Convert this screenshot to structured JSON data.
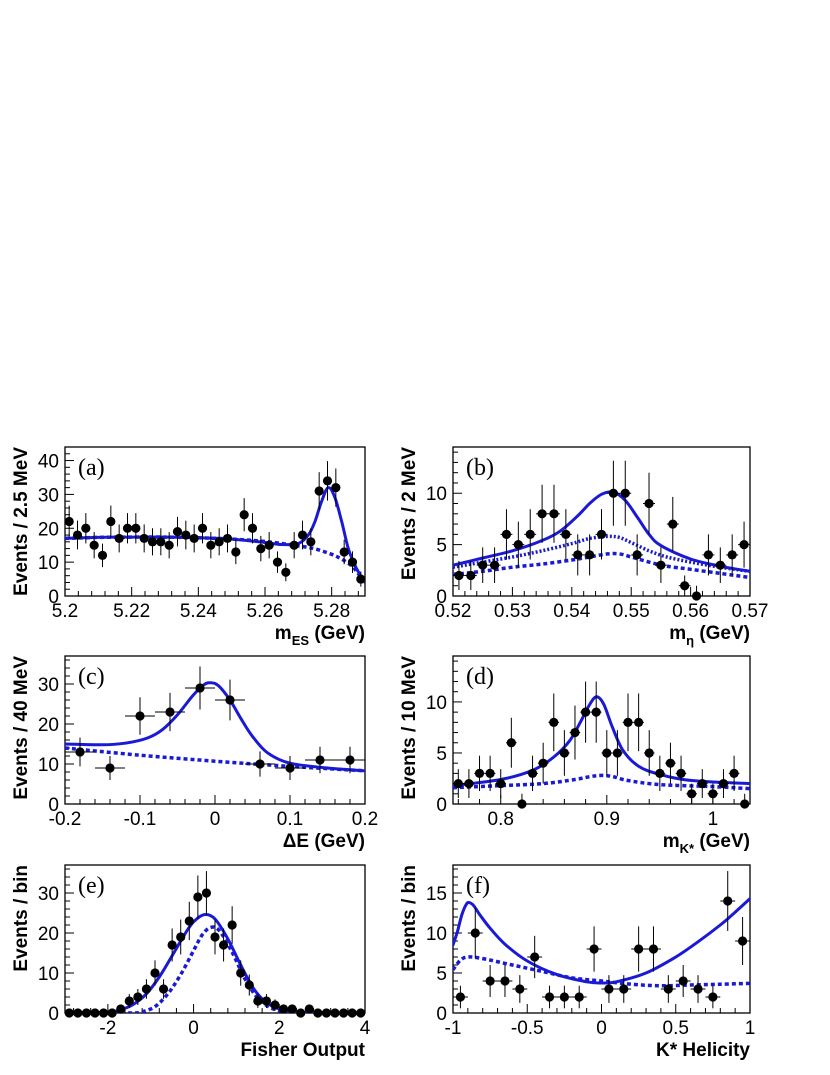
{
  "colors": {
    "fit": "#1a1ad6",
    "axis": "#000000",
    "data": "#000000"
  },
  "chart_data": [
    {
      "id": "a",
      "type": "scatter",
      "panel_label": "(a)",
      "xlabel": "m",
      "xlabel_sub": "ES",
      "xlabel_unit": " (GeV)",
      "ylabel": "Events / 2.5 MeV",
      "xlim": [
        5.2,
        5.29
      ],
      "ylim": [
        0,
        44
      ],
      "xticks": [
        5.2,
        5.22,
        5.24,
        5.26,
        5.28
      ],
      "xtick_labels": [
        "5.2",
        "5.22",
        "5.24",
        "5.26",
        "5.28"
      ],
      "yticks": [
        0,
        10,
        20,
        30,
        40
      ],
      "ytick_labels": [
        "0",
        "10",
        "20",
        "30",
        "40"
      ],
      "xerr": 0.00125,
      "points": {
        "x": [
          5.20125,
          5.20375,
          5.20625,
          5.20875,
          5.21125,
          5.21375,
          5.21625,
          5.21875,
          5.22125,
          5.22375,
          5.22625,
          5.22875,
          5.23125,
          5.23375,
          5.23625,
          5.23875,
          5.24125,
          5.24375,
          5.24625,
          5.24875,
          5.25125,
          5.25375,
          5.25625,
          5.25875,
          5.26125,
          5.26375,
          5.26625,
          5.26875,
          5.27125,
          5.27375,
          5.27625,
          5.27875,
          5.28125,
          5.28375,
          5.28625,
          5.28875
        ],
        "y": [
          22,
          18,
          20,
          15,
          12,
          22,
          17,
          20,
          20,
          17,
          16,
          16,
          15,
          19,
          18,
          17,
          20,
          15,
          16,
          17,
          13,
          24,
          20,
          14,
          15,
          10,
          7,
          15,
          18,
          16,
          31,
          34,
          32,
          13,
          10,
          5
        ]
      },
      "curves": [
        {
          "name": "Total fit",
          "style": "solid",
          "x": [
            5.2,
            5.21,
            5.22,
            5.23,
            5.24,
            5.25,
            5.26,
            5.265,
            5.27,
            5.273,
            5.275,
            5.277,
            5.279,
            5.281,
            5.283,
            5.285,
            5.287,
            5.289,
            5.29
          ],
          "y": [
            17,
            17.3,
            17.4,
            17.4,
            17.2,
            16.8,
            15.8,
            15.2,
            15.5,
            18,
            22,
            28,
            32,
            29,
            22,
            14,
            9,
            5.5,
            4
          ]
        },
        {
          "name": "Background",
          "style": "dashed",
          "x": [
            5.2,
            5.21,
            5.22,
            5.23,
            5.24,
            5.25,
            5.26,
            5.27,
            5.275,
            5.28,
            5.283,
            5.286,
            5.288,
            5.29
          ],
          "y": [
            17,
            17.3,
            17.4,
            17.4,
            17.2,
            16.8,
            16.1,
            14.8,
            13.9,
            12.3,
            10.9,
            8.9,
            6.6,
            3.5
          ]
        }
      ]
    },
    {
      "id": "b",
      "type": "scatter",
      "panel_label": "(b)",
      "xlabel": "m",
      "xlabel_sub": "η",
      "xlabel_unit": " (GeV)",
      "ylabel": "Events / 2 MeV",
      "xlim": [
        0.52,
        0.57
      ],
      "ylim": [
        0,
        14.5
      ],
      "xticks": [
        0.52,
        0.53,
        0.54,
        0.55,
        0.56,
        0.57
      ],
      "xtick_labels": [
        "0.52",
        "0.53",
        "0.54",
        "0.55",
        "0.56",
        "0.57"
      ],
      "yticks": [
        0,
        5,
        10
      ],
      "ytick_labels": [
        "0",
        "5",
        "10"
      ],
      "xerr": 0.001,
      "points": {
        "x": [
          0.521,
          0.523,
          0.525,
          0.527,
          0.529,
          0.531,
          0.533,
          0.535,
          0.537,
          0.539,
          0.541,
          0.543,
          0.545,
          0.547,
          0.549,
          0.551,
          0.553,
          0.555,
          0.557,
          0.559,
          0.561,
          0.563,
          0.565,
          0.567,
          0.569
        ],
        "y": [
          2,
          2,
          3,
          3,
          6,
          5,
          6,
          8,
          8,
          6,
          4,
          4,
          6,
          10,
          10,
          4,
          9,
          3,
          7,
          1,
          0,
          4,
          3,
          4,
          5
        ]
      },
      "curves": [
        {
          "name": "Total fit",
          "style": "solid",
          "x": [
            0.52,
            0.525,
            0.53,
            0.535,
            0.538,
            0.541,
            0.543,
            0.545,
            0.547,
            0.549,
            0.551,
            0.553,
            0.555,
            0.56,
            0.565,
            0.57
          ],
          "y": [
            3,
            3.7,
            4.4,
            5.4,
            6.3,
            7.8,
            9,
            9.9,
            10.1,
            9.3,
            7.7,
            6,
            4.9,
            3.6,
            2.9,
            2.4
          ]
        },
        {
          "name": "Peaking component",
          "style": "dotted",
          "x": [
            0.52,
            0.525,
            0.53,
            0.535,
            0.54,
            0.543,
            0.546,
            0.548,
            0.55,
            0.553,
            0.556,
            0.56,
            0.565,
            0.57
          ],
          "y": [
            2.8,
            3.3,
            3.8,
            4.4,
            5.1,
            5.6,
            5.8,
            5.7,
            5.2,
            4.4,
            3.8,
            3.3,
            2.8,
            2.4
          ]
        },
        {
          "name": "Background",
          "style": "dashed",
          "x": [
            0.52,
            0.525,
            0.53,
            0.535,
            0.54,
            0.543,
            0.546,
            0.548,
            0.55,
            0.553,
            0.556,
            0.56,
            0.565,
            0.57
          ],
          "y": [
            2.1,
            2.4,
            2.8,
            3.1,
            3.5,
            3.8,
            4.1,
            4.1,
            3.8,
            3.3,
            2.9,
            2.6,
            2.2,
            1.8
          ]
        }
      ]
    },
    {
      "id": "c",
      "type": "scatter",
      "panel_label": "(c)",
      "xlabel": "ΔE",
      "xlabel_sub": "",
      "xlabel_unit": " (GeV)",
      "ylabel": "Events / 40 MeV",
      "xlim": [
        -0.2,
        0.2
      ],
      "ylim": [
        0,
        37
      ],
      "xticks": [
        -0.2,
        -0.1,
        0,
        0.1,
        0.2
      ],
      "xtick_labels": [
        "-0.2",
        "-0.1",
        "0",
        "0.1",
        "0.2"
      ],
      "yticks": [
        0,
        10,
        20,
        30
      ],
      "ytick_labels": [
        "0",
        "10",
        "20",
        "30"
      ],
      "xerr": 0.02,
      "points": {
        "x": [
          -0.18,
          -0.14,
          -0.1,
          -0.06,
          -0.02,
          0.02,
          0.06,
          0.1,
          0.14,
          0.18
        ],
        "y": [
          13,
          9,
          22,
          23,
          29,
          26,
          10,
          9,
          11,
          11
        ]
      },
      "curves": [
        {
          "name": "Total fit",
          "style": "solid",
          "x": [
            -0.2,
            -0.15,
            -0.12,
            -0.09,
            -0.07,
            -0.05,
            -0.03,
            -0.015,
            -0.005,
            0.005,
            0.02,
            0.035,
            0.05,
            0.07,
            0.1,
            0.15,
            0.2
          ],
          "y": [
            15,
            14.8,
            15.2,
            16.5,
            18.6,
            22.3,
            27,
            29.8,
            30.3,
            29.5,
            26,
            21.2,
            16.9,
            12.8,
            10.2,
            9,
            8.3
          ]
        },
        {
          "name": "Background",
          "style": "dashed",
          "x": [
            -0.2,
            -0.1,
            0,
            0.1,
            0.2
          ],
          "y": [
            14,
            12.2,
            10.7,
            9.4,
            8.3
          ]
        }
      ]
    },
    {
      "id": "d",
      "type": "scatter",
      "panel_label": "(d)",
      "xlabel": "m",
      "xlabel_sub": "K*",
      "xlabel_unit": " (GeV)",
      "ylabel": "Events / 10 MeV",
      "xlim": [
        0.755,
        1.035
      ],
      "ylim": [
        0,
        14.5
      ],
      "xticks": [
        0.8,
        0.9,
        1.0
      ],
      "xtick_labels": [
        "0.8",
        "0.9",
        "1"
      ],
      "yticks": [
        0,
        5,
        10
      ],
      "ytick_labels": [
        "0",
        "5",
        "10"
      ],
      "xerr": 0.005,
      "points": {
        "x": [
          0.76,
          0.77,
          0.78,
          0.79,
          0.8,
          0.81,
          0.82,
          0.83,
          0.84,
          0.85,
          0.86,
          0.87,
          0.88,
          0.89,
          0.9,
          0.91,
          0.92,
          0.93,
          0.94,
          0.95,
          0.96,
          0.97,
          0.98,
          0.99,
          1.0,
          1.01,
          1.02,
          1.03
        ],
        "y": [
          2,
          2,
          3,
          3,
          2,
          6,
          0,
          3,
          4,
          8,
          5,
          7,
          9,
          9,
          5,
          5,
          8,
          8,
          5,
          3,
          4,
          3,
          1,
          2,
          1,
          2,
          3,
          0
        ]
      },
      "curves": [
        {
          "name": "Total fit",
          "style": "solid",
          "x": [
            0.755,
            0.8,
            0.83,
            0.85,
            0.865,
            0.875,
            0.883,
            0.89,
            0.897,
            0.905,
            0.915,
            0.93,
            0.95,
            0.98,
            1.035
          ],
          "y": [
            1.8,
            2.4,
            3.3,
            4.6,
            6.2,
            8,
            9.6,
            10.5,
            9.8,
            7.6,
            5.3,
            3.7,
            2.9,
            2.3,
            2
          ]
        },
        {
          "name": "Background",
          "style": "dashed",
          "x": [
            0.755,
            0.8,
            0.84,
            0.87,
            0.885,
            0.895,
            0.905,
            0.92,
            0.95,
            1.0,
            1.035
          ],
          "y": [
            1.6,
            1.8,
            2,
            2.4,
            2.7,
            2.8,
            2.7,
            2.3,
            1.9,
            1.7,
            1.5
          ]
        }
      ]
    },
    {
      "id": "e",
      "type": "scatter",
      "panel_label": "(e)",
      "xlabel": "Fisher Output",
      "xlabel_sub": "",
      "xlabel_unit": "",
      "ylabel": "Events / bin",
      "xlim": [
        -3,
        4
      ],
      "ylim": [
        0,
        37
      ],
      "xticks": [
        -2,
        0,
        2,
        4
      ],
      "xtick_labels": [
        "-2",
        "0",
        "2",
        "4"
      ],
      "yticks": [
        0,
        10,
        20,
        30
      ],
      "ytick_labels": [
        "0",
        "10",
        "20",
        "30"
      ],
      "xerr": 0.1,
      "points": {
        "x": [
          -2.9,
          -2.7,
          -2.5,
          -2.3,
          -2.1,
          -1.9,
          -1.7,
          -1.5,
          -1.3,
          -1.1,
          -0.9,
          -0.7,
          -0.5,
          -0.3,
          -0.1,
          0.1,
          0.3,
          0.5,
          0.7,
          0.9,
          1.1,
          1.3,
          1.5,
          1.7,
          1.9,
          2.1,
          2.3,
          2.5,
          2.7,
          2.9,
          3.1,
          3.3,
          3.5,
          3.7,
          3.9
        ],
        "y": [
          0,
          0,
          0,
          0,
          0,
          0,
          1,
          3,
          4,
          6,
          10,
          6,
          17,
          19,
          23,
          29,
          30,
          19,
          17,
          22,
          10,
          7,
          3,
          3,
          2,
          1,
          1,
          0,
          1,
          0,
          0,
          0,
          0,
          0,
          0
        ]
      },
      "curves": [
        {
          "name": "Total fit",
          "style": "solid",
          "x": [
            -3,
            -2,
            -1.7,
            -1.4,
            -1.1,
            -0.8,
            -0.5,
            -0.2,
            0,
            0.25,
            0.5,
            0.8,
            1.1,
            1.4,
            1.7,
            2,
            2.3,
            2.6,
            3,
            4
          ],
          "y": [
            0,
            0.2,
            0.8,
            2.2,
            4.8,
            9,
            14.3,
            19.8,
            22.8,
            24.6,
            23.5,
            18.5,
            12,
            6.1,
            2.6,
            1,
            0.4,
            0.1,
            0,
            0
          ]
        },
        {
          "name": "Signal",
          "style": "dashed",
          "x": [
            -3,
            -1.5,
            -1.2,
            -0.9,
            -0.6,
            -0.3,
            0,
            0.2,
            0.4,
            0.6,
            0.9,
            1.2,
            1.5,
            1.8,
            2.1,
            2.5,
            3,
            4
          ],
          "y": [
            0,
            0,
            0.3,
            1.6,
            4.8,
            9.6,
            15.6,
            19.5,
            21.4,
            20.6,
            15.2,
            8.5,
            3.7,
            1.3,
            0.4,
            0.1,
            0,
            0
          ]
        }
      ]
    },
    {
      "id": "f",
      "type": "scatter",
      "panel_label": "(f)",
      "xlabel": "K* Helicity",
      "xlabel_sub": "",
      "xlabel_unit": "",
      "ylabel": "Events / bin",
      "xlim": [
        -1,
        1
      ],
      "ylim": [
        0,
        18.5
      ],
      "xticks": [
        -1,
        -0.5,
        0,
        0.5,
        1
      ],
      "xtick_labels": [
        "-1",
        "-0.5",
        "0",
        "0.5",
        "1"
      ],
      "yticks": [
        0,
        5,
        10,
        15
      ],
      "ytick_labels": [
        "0",
        "5",
        "10",
        "15"
      ],
      "xerr": 0.05,
      "points": {
        "x": [
          -0.95,
          -0.85,
          -0.75,
          -0.65,
          -0.55,
          -0.45,
          -0.35,
          -0.25,
          -0.15,
          -0.05,
          0.05,
          0.15,
          0.25,
          0.35,
          0.45,
          0.55,
          0.65,
          0.75,
          0.85,
          0.95
        ],
        "y": [
          2,
          10,
          4,
          4,
          3,
          7,
          2,
          2,
          2,
          8,
          3,
          3,
          8,
          8,
          3,
          4,
          3,
          2,
          14,
          9
        ]
      },
      "curves": [
        {
          "name": "Total fit",
          "style": "solid",
          "x": [
            -1,
            -0.97,
            -0.94,
            -0.91,
            -0.89,
            -0.86,
            -0.82,
            -0.75,
            -0.65,
            -0.5,
            -0.3,
            -0.1,
            0,
            0.1,
            0.3,
            0.5,
            0.65,
            0.8,
            0.9,
            1
          ],
          "y": [
            8.5,
            10.2,
            12.3,
            13.6,
            13.8,
            13.4,
            12.3,
            10.6,
            8.6,
            6.5,
            4.8,
            3.9,
            3.75,
            3.9,
            5,
            7,
            8.9,
            11,
            12.6,
            14.3
          ]
        },
        {
          "name": "Background",
          "style": "dashed",
          "x": [
            -1,
            -0.95,
            -0.9,
            -0.8,
            -0.6,
            -0.4,
            -0.2,
            0,
            0.2,
            0.4,
            0.6,
            0.8,
            1
          ],
          "y": [
            5.4,
            6.6,
            7,
            6.8,
            6,
            5.2,
            4.4,
            4,
            3.6,
            3.4,
            3.5,
            3.6,
            3.7
          ]
        }
      ]
    }
  ]
}
